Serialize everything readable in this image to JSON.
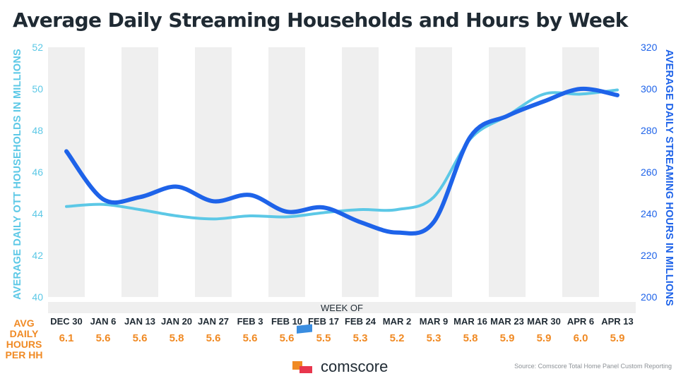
{
  "chart_data": {
    "type": "line",
    "title": "Average Daily Streaming Households and Hours by Week",
    "xlabel": "WEEK OF",
    "categories": [
      "DEC 30",
      "JAN 6",
      "JAN 13",
      "JAN 20",
      "JAN 27",
      "FEB 3",
      "FEB 10",
      "FEB 17",
      "FEB 24",
      "MAR 2",
      "MAR 9",
      "MAR 16",
      "MAR 23",
      "MAR 30",
      "APR 6",
      "APR 13"
    ],
    "y_left": {
      "label": "AVERAGE DAILY OTT HOUSEHOLDS IN MILLIONS",
      "range": [
        40,
        52
      ],
      "ticks": [
        "40",
        "42",
        "44",
        "46",
        "48",
        "50",
        "52"
      ]
    },
    "y_right": {
      "label": "AVERAGE DAILY STREAMING HOURS IN MILLIONS",
      "range": [
        200,
        320
      ],
      "ticks": [
        "200",
        "220",
        "240",
        "260",
        "280",
        "300",
        "320"
      ]
    },
    "series": [
      {
        "axis": "left",
        "color": "#5cc8e6",
        "values": [
          44.35,
          44.45,
          44.2,
          43.9,
          43.75,
          43.9,
          43.85,
          44.05,
          44.2,
          44.2,
          44.8,
          47.6,
          48.7,
          49.75,
          49.75,
          49.95
        ]
      },
      {
        "axis": "right",
        "color": "#1e63e9",
        "values": [
          270,
          247,
          248,
          253,
          246,
          249,
          241,
          243,
          236,
          231,
          236,
          277,
          287,
          294,
          300,
          297
        ]
      }
    ],
    "avg_daily_hours": {
      "label_lines": [
        "AVG",
        "DAILY",
        "HOURS",
        "PER HH"
      ],
      "values": [
        "6.1",
        "5.6",
        "5.6",
        "5.8",
        "5.6",
        "5.6",
        "5.6",
        "5.5",
        "5.3",
        "5.2",
        "5.3",
        "5.8",
        "5.9",
        "5.9",
        "6.0",
        "5.9"
      ]
    },
    "grid": "alternating vertical bands"
  },
  "branding": {
    "name": "comscore"
  },
  "source": "Source: Comscore Total Home Panel Custom Reporting",
  "colors": {
    "households": "#5cc8e6",
    "hours": "#1e63e9",
    "avg": "#f08a24",
    "band": "#efefef",
    "text": "#1f2a33"
  }
}
